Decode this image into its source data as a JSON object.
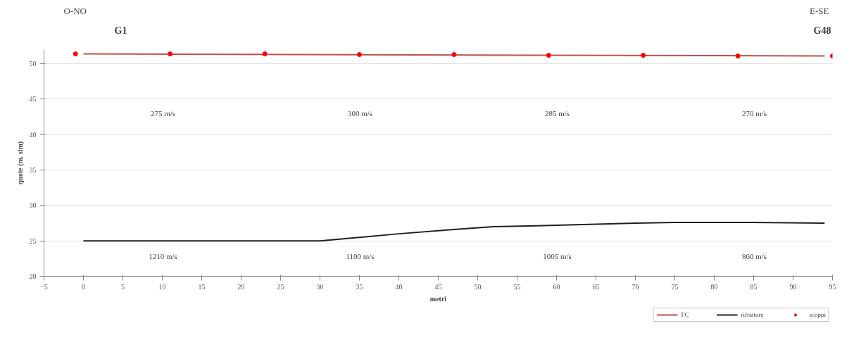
{
  "chart_data": {
    "type": "line",
    "xlabel": "metri",
    "ylabel": "quote (m. slm)",
    "xlim": [
      -5,
      95
    ],
    "ylim": [
      20,
      52
    ],
    "xticks": [
      -5,
      0,
      5,
      10,
      15,
      20,
      25,
      30,
      35,
      40,
      45,
      50,
      55,
      60,
      65,
      70,
      75,
      80,
      85,
      90,
      95
    ],
    "yticks": [
      20,
      25,
      30,
      35,
      40,
      45,
      50
    ],
    "grid": "y",
    "legend": "bottom right",
    "series": [
      {
        "name": "FC",
        "color": "#c0504d",
        "x": [
          0,
          94
        ],
        "values": [
          51.4,
          51.1
        ]
      },
      {
        "name": "rifrattore",
        "color": "#1f1f1f",
        "x": [
          0,
          10,
          20,
          30,
          35,
          40,
          47,
          52,
          60,
          70,
          75,
          85,
          94
        ],
        "values": [
          25.0,
          25.0,
          25.0,
          25.0,
          25.5,
          26.0,
          26.6,
          27.0,
          27.2,
          27.5,
          27.6,
          27.6,
          27.5
        ]
      },
      {
        "name": "scoppi",
        "type": "scatter",
        "marker": "circle",
        "color": "#ff0000",
        "x": [
          -1,
          11,
          23,
          35,
          47,
          59,
          71,
          83,
          95
        ],
        "values": [
          51.4,
          51.4,
          51.4,
          51.3,
          51.3,
          51.2,
          51.2,
          51.1,
          51.1
        ]
      }
    ],
    "annotations": [
      "O-NO",
      "E-SE",
      "G1",
      "G48",
      "275 m/s",
      "300 m/s",
      "285 m/s",
      "270 m/s",
      "1210 m/s",
      "1100 m/s",
      "1005 m/s",
      "860 m/s"
    ]
  }
}
